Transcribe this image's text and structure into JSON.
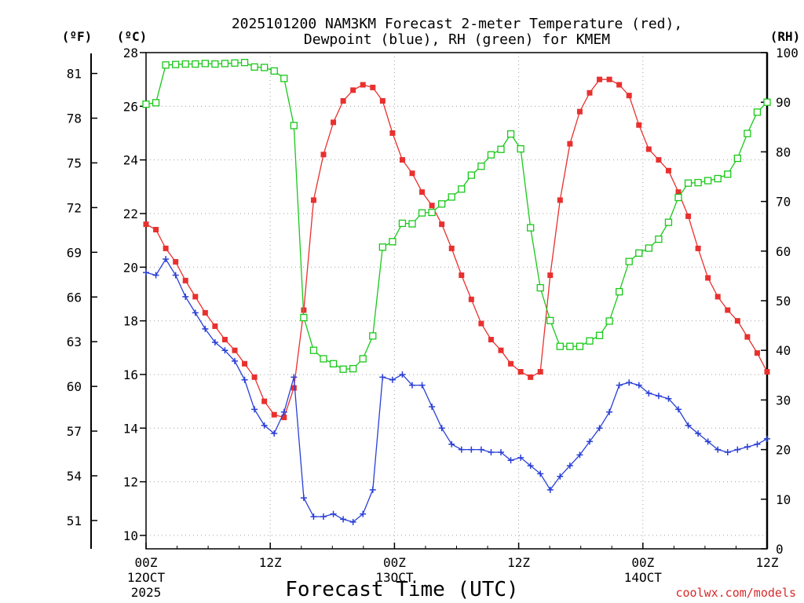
{
  "chart_data": {
    "type": "line",
    "title": "2025101200 NAM3KM Forecast 2-meter Temperature (red),",
    "subtitle": "Dewpoint (blue), RH (green) for KMEM",
    "xlabel": "Forecast Time (UTC)",
    "credit": "coolwx.com/models",
    "unit_f": "(ºF)",
    "unit_c": "(ºC)",
    "unit_rh": "(RH)",
    "x_range": [
      0,
      60
    ],
    "x_ticks": [
      {
        "hour": 0,
        "label": "00Z",
        "label2": "12OCT",
        "label3": "2025"
      },
      {
        "hour": 12,
        "label": "12Z"
      },
      {
        "hour": 24,
        "label": "00Z",
        "label2": "13OCT"
      },
      {
        "hour": 36,
        "label": "12Z"
      },
      {
        "hour": 48,
        "label": "00Z",
        "label2": "14OCT"
      },
      {
        "hour": 60,
        "label": "12Z"
      }
    ],
    "celsius_range": [
      9.5,
      28
    ],
    "celsius_ticks": [
      "10",
      "12",
      "14",
      "16",
      "18",
      "20",
      "22",
      "24",
      "26",
      "28"
    ],
    "fahrenheit_ticks": [
      "51",
      "54",
      "57",
      "60",
      "63",
      "66",
      "69",
      "72",
      "75",
      "78",
      "81"
    ],
    "rh_range": [
      0,
      100
    ],
    "rh_ticks": [
      "0",
      "10",
      "20",
      "30",
      "40",
      "50",
      "60",
      "70",
      "80",
      "90",
      "100"
    ],
    "series": [
      {
        "name": "Temperature",
        "units": "degC",
        "color": "#e8312f",
        "marker": "filled-square",
        "values": [
          21.6,
          21.4,
          20.7,
          20.2,
          19.5,
          18.9,
          18.3,
          17.8,
          17.3,
          16.9,
          16.4,
          15.9,
          15.0,
          14.5,
          14.4,
          15.5,
          18.4,
          22.5,
          24.2,
          25.4,
          26.2,
          26.6,
          26.8,
          26.7,
          26.2,
          25.0,
          24.0,
          23.5,
          22.8,
          22.3,
          21.6,
          20.7,
          19.7,
          18.8,
          17.9,
          17.3,
          16.9,
          16.4,
          16.1,
          15.9,
          16.1,
          19.7,
          22.5,
          24.6,
          25.8,
          26.5,
          27.0,
          27.0,
          26.8,
          26.4,
          25.3,
          24.4,
          24.0,
          23.6,
          22.8,
          21.9,
          20.7,
          19.6,
          18.9,
          18.4,
          18.0,
          17.4,
          16.8,
          16.1
        ]
      },
      {
        "name": "Dewpoint",
        "units": "degC",
        "color": "#2a3fd6",
        "marker": "plus",
        "values": [
          19.8,
          19.7,
          20.3,
          19.7,
          18.9,
          18.3,
          17.7,
          17.2,
          16.9,
          16.5,
          15.8,
          14.7,
          14.1,
          13.8,
          14.6,
          15.9,
          11.4,
          10.7,
          10.7,
          10.8,
          10.6,
          10.5,
          10.8,
          11.7,
          15.9,
          15.8,
          16.0,
          15.6,
          15.6,
          14.8,
          14.0,
          13.4,
          13.2,
          13.2,
          13.2,
          13.1,
          13.1,
          12.8,
          12.9,
          12.6,
          12.3,
          11.7,
          12.2,
          12.6,
          13.0,
          13.5,
          14.0,
          14.6,
          15.6,
          15.7,
          15.6,
          15.3,
          15.2,
          15.1,
          14.7,
          14.1,
          13.8,
          13.5,
          13.2,
          13.1,
          13.2,
          13.3,
          13.4,
          13.6
        ]
      },
      {
        "name": "RH",
        "units": "%",
        "color": "#19c819",
        "marker": "open-square",
        "values": [
          89.6,
          89.9,
          97.5,
          97.6,
          97.7,
          97.7,
          97.8,
          97.7,
          97.8,
          97.9,
          98.0,
          97.1,
          97.0,
          96.3,
          94.8,
          85.3,
          46.6,
          40.0,
          38.3,
          37.3,
          36.2,
          36.3,
          38.3,
          42.9,
          60.8,
          61.9,
          65.6,
          65.5,
          67.7,
          67.8,
          69.5,
          70.9,
          72.5,
          75.3,
          77.1,
          79.4,
          80.5,
          83.6,
          80.6,
          64.7,
          52.6,
          46.0,
          40.8,
          40.8,
          40.8,
          41.9,
          43.0,
          45.9,
          51.8,
          57.9,
          59.6,
          60.6,
          62.4,
          65.8,
          70.8,
          73.7,
          73.8,
          74.2,
          74.6,
          75.5,
          78.7,
          83.7,
          88.0,
          90.0
        ]
      }
    ]
  }
}
